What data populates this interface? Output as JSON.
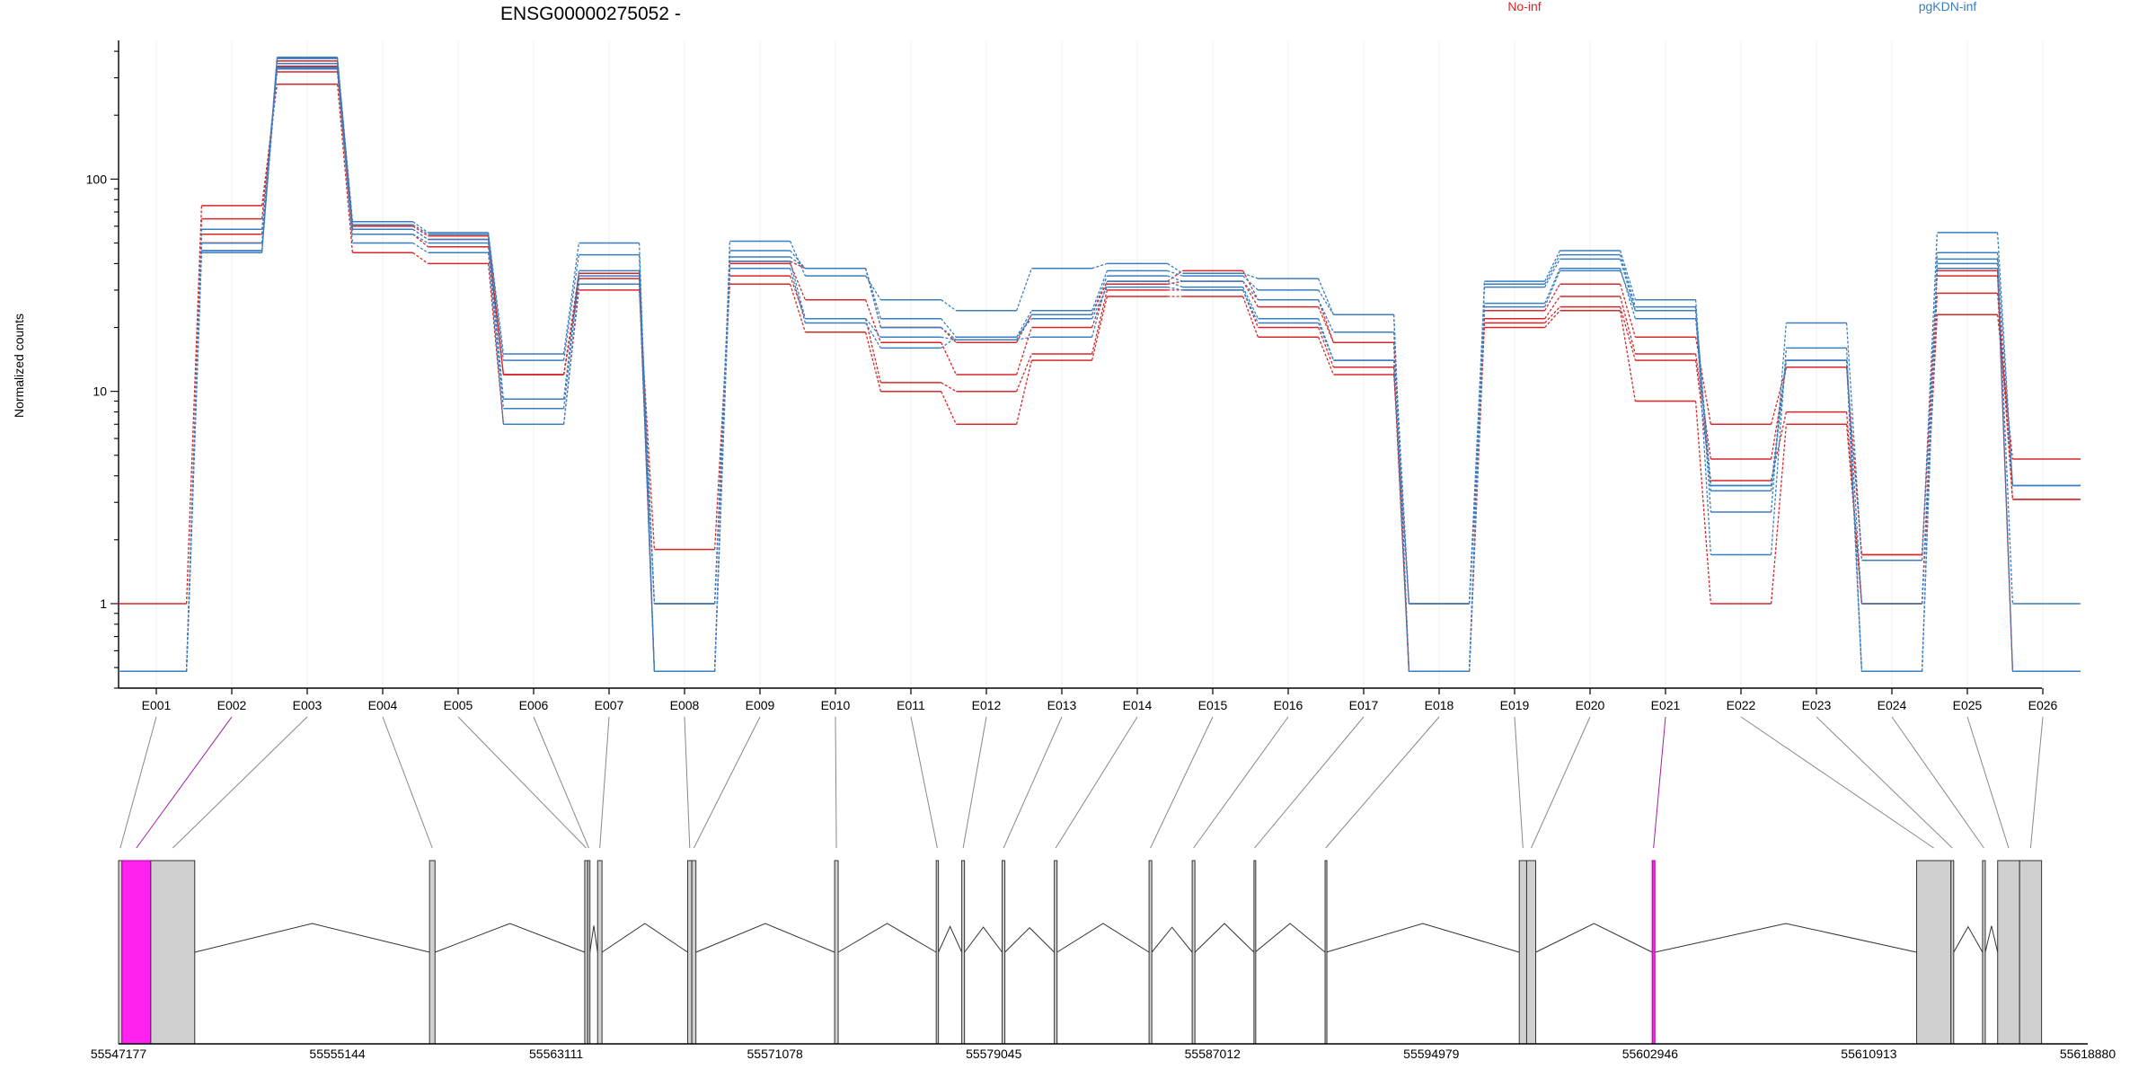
{
  "chart_data": {
    "type": "line",
    "title": "ENSG00000275052 -",
    "ylabel": "Normalized counts",
    "yscale": "log",
    "ylim": [
      0.4,
      450
    ],
    "yticks": [
      1,
      10,
      100
    ],
    "ytick_labels": [
      "1",
      "10",
      "100"
    ],
    "categories": [
      "E001",
      "E002",
      "E003",
      "E004",
      "E005",
      "E006",
      "E007",
      "E008",
      "E009",
      "E010",
      "E011",
      "E012",
      "E013",
      "E014",
      "E015",
      "E016",
      "E017",
      "E018",
      "E019",
      "E020",
      "E021",
      "E022",
      "E023",
      "E024",
      "E025",
      "E026"
    ],
    "groups": [
      {
        "name": "No-inf",
        "color": "#d62728"
      },
      {
        "name": "pgKDN-inf",
        "color": "#3a7ebf"
      }
    ],
    "series": [
      {
        "group": "No-inf",
        "values": [
          1.0,
          75,
          280,
          45,
          40,
          7,
          30,
          1.8,
          32,
          19,
          10,
          7,
          14,
          28,
          28,
          18,
          12,
          1.0,
          20,
          24,
          9,
          1.0,
          7,
          1.0,
          23,
          4.8
        ]
      },
      {
        "group": "No-inf",
        "values": [
          0.48,
          65,
          320,
          55,
          48,
          12,
          32,
          1.0,
          35,
          22,
          11,
          10,
          15,
          30,
          30,
          20,
          13,
          0.48,
          21,
          25,
          14,
          3.8,
          8,
          1.0,
          29,
          3.1
        ]
      },
      {
        "group": "No-inf",
        "values": [
          0.48,
          55,
          340,
          58,
          52,
          12,
          34,
          0.48,
          40,
          27,
          17,
          12,
          20,
          32,
          33,
          25,
          17,
          0.48,
          22,
          28,
          15,
          4.8,
          13,
          1.7,
          35,
          3.1
        ]
      },
      {
        "group": "No-inf",
        "values": [
          0.48,
          50,
          360,
          60,
          54,
          12,
          36,
          0.48,
          41,
          38,
          20,
          17,
          23,
          33,
          37,
          27,
          17,
          0.48,
          24,
          32,
          18,
          7,
          13,
          1.7,
          37,
          0.48
        ]
      },
      {
        "group": "pgKDN-inf",
        "values": [
          0.48,
          46,
          375,
          63,
          56,
          15,
          50,
          0.48,
          51,
          35,
          27,
          24,
          38,
          40,
          36,
          34,
          23,
          0.48,
          33,
          46,
          27,
          2.7,
          21,
          1.6,
          56,
          3.6
        ]
      },
      {
        "group": "pgKDN-inf",
        "values": [
          0.48,
          45,
          370,
          61,
          55,
          14,
          44,
          0.48,
          46,
          38,
          22,
          18,
          24,
          37,
          35,
          30,
          23,
          0.48,
          32,
          44,
          25,
          1.7,
          16,
          0.48,
          45,
          3.6
        ]
      },
      {
        "group": "pgKDN-inf",
        "values": [
          0.48,
          50,
          350,
          58,
          52,
          9.2,
          37,
          1.0,
          43,
          38,
          20,
          17.5,
          23,
          35,
          33,
          27,
          19,
          1.0,
          31,
          42,
          24,
          3.6,
          14,
          0.48,
          42,
          1.0
        ]
      },
      {
        "group": "pgKDN-inf",
        "values": [
          0.48,
          58,
          335,
          55,
          50,
          8.3,
          35,
          1.0,
          41,
          22,
          18,
          17.5,
          18,
          33,
          31,
          22,
          14,
          1.0,
          26,
          38,
          22,
          3.4,
          14,
          0.48,
          40,
          0.48
        ]
      },
      {
        "group": "pgKDN-inf",
        "values": [
          0.48,
          46,
          330,
          50,
          45,
          7,
          32,
          0.48,
          38,
          21,
          16,
          18,
          22,
          31,
          30,
          21,
          14,
          0.48,
          25,
          37,
          24,
          3.6,
          14,
          1.0,
          38,
          0.48
        ]
      }
    ]
  },
  "gene_model": {
    "coordinate_labels": [
      "55547177",
      "55555144",
      "55563111",
      "55571078",
      "55579045",
      "55587012",
      "55594979",
      "55602946",
      "55610913",
      "55618880"
    ],
    "coord_min": 55547177,
    "coord_max": 55618880,
    "highlight_color": "#ff22ee",
    "highlighted_exons": [
      "E002",
      "E021"
    ],
    "exons": [
      {
        "id": "E001",
        "start": 55547177,
        "end": 55547300
      },
      {
        "id": "E002",
        "start": 55547300,
        "end": 55548350
      },
      {
        "id": "E003",
        "start": 55548350,
        "end": 55549950
      },
      {
        "id": "E004",
        "start": 55558500,
        "end": 55558700
      },
      {
        "id": "E005",
        "start": 55564150,
        "end": 55564260
      },
      {
        "id": "E006",
        "start": 55564260,
        "end": 55564340
      },
      {
        "id": "E007",
        "start": 55564620,
        "end": 55564780
      },
      {
        "id": "E008",
        "start": 55567900,
        "end": 55568050
      },
      {
        "id": "E009",
        "start": 55568050,
        "end": 55568200
      },
      {
        "id": "E010",
        "start": 55573250,
        "end": 55573380
      },
      {
        "id": "E011",
        "start": 55576950,
        "end": 55577030
      },
      {
        "id": "E012",
        "start": 55577880,
        "end": 55577980
      },
      {
        "id": "E013",
        "start": 55579350,
        "end": 55579450
      },
      {
        "id": "E014",
        "start": 55581250,
        "end": 55581350
      },
      {
        "id": "E015",
        "start": 55584700,
        "end": 55584800
      },
      {
        "id": "E016",
        "start": 55586270,
        "end": 55586370
      },
      {
        "id": "E017",
        "start": 55588520,
        "end": 55588560
      },
      {
        "id": "E018",
        "start": 55591110,
        "end": 55591150
      },
      {
        "id": "E019",
        "start": 55598180,
        "end": 55598450
      },
      {
        "id": "E020",
        "start": 55598450,
        "end": 55598780
      },
      {
        "id": "E021",
        "start": 55603020,
        "end": 55603120
      },
      {
        "id": "E022",
        "start": 55612650,
        "end": 55613900
      },
      {
        "id": "E023",
        "start": 55613900,
        "end": 55614000
      },
      {
        "id": "E024",
        "start": 55615050,
        "end": 55615150
      },
      {
        "id": "E025",
        "start": 55615600,
        "end": 55616400
      },
      {
        "id": "E026",
        "start": 55616400,
        "end": 55617200
      }
    ]
  }
}
